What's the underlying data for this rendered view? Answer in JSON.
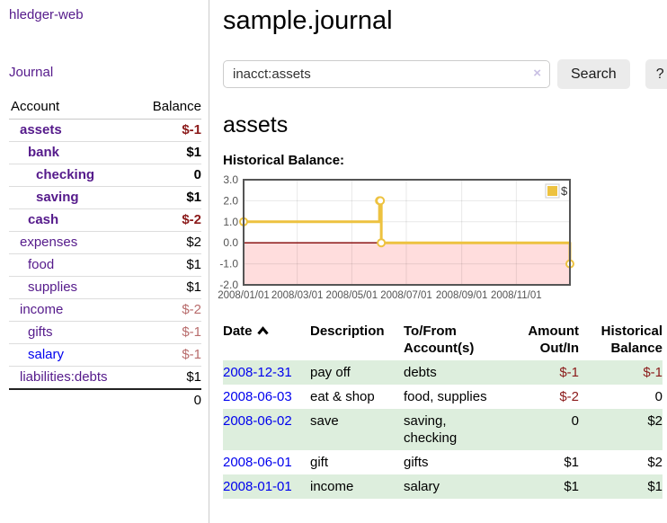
{
  "colors": {
    "purple": "#551a8b",
    "link-blue": "#0000ee",
    "neg-strong": "#8b1a1a",
    "neg-soft": "#b86c6c",
    "stripe-green": "#ddeedd"
  },
  "app": {
    "brand": "hledger-web"
  },
  "nav": {
    "journal": "Journal"
  },
  "sidebar": {
    "header": {
      "account": "Account",
      "balance": "Balance"
    },
    "accounts": [
      {
        "name": "assets",
        "balance": "$-1",
        "indent": 1,
        "bold": true,
        "neg": "strong"
      },
      {
        "name": "bank",
        "balance": "$1",
        "indent": 2,
        "bold": true
      },
      {
        "name": "checking",
        "balance": "0",
        "indent": 3,
        "bold": true
      },
      {
        "name": "saving",
        "balance": "$1",
        "indent": 3,
        "bold": true
      },
      {
        "name": "cash",
        "balance": "$-2",
        "indent": 2,
        "bold": true,
        "neg": "strong"
      },
      {
        "name": "expenses",
        "balance": "$2",
        "indent": 1
      },
      {
        "name": "food",
        "balance": "$1",
        "indent": 2
      },
      {
        "name": "supplies",
        "balance": "$1",
        "indent": 2
      },
      {
        "name": "income",
        "balance": "$-2",
        "indent": 1,
        "neg": "soft"
      },
      {
        "name": "gifts",
        "balance": "$-1",
        "indent": 2,
        "neg": "soft"
      },
      {
        "name": "salary",
        "balance": "$-1",
        "indent": 2,
        "neg": "soft",
        "link_color": "blue"
      },
      {
        "name": "liabilities:debts",
        "balance": "$1",
        "indent": 1
      }
    ],
    "total": "0"
  },
  "page": {
    "title": "sample.journal"
  },
  "search": {
    "value": "inacct:assets",
    "clear": "×",
    "search_button": "Search",
    "help_button": "?"
  },
  "account_view": {
    "heading": "assets",
    "chart_title": "Historical Balance:"
  },
  "chart_data": {
    "type": "line",
    "step": true,
    "series": [
      {
        "name": "$",
        "color": "#edc240",
        "points": [
          [
            "2008-01-01",
            1
          ],
          [
            "2008-06-01",
            2
          ],
          [
            "2008-06-02",
            2
          ],
          [
            "2008-06-03",
            0
          ],
          [
            "2008-12-31",
            -1
          ]
        ]
      }
    ],
    "x_range": [
      "2008-01-01",
      "2008-12-31"
    ],
    "x_ticks": [
      "2008/01/01",
      "2008/03/01",
      "2008/05/01",
      "2008/07/01",
      "2008/09/01",
      "2008/11/01"
    ],
    "y_range": [
      -2,
      3
    ],
    "y_ticks": [
      "3.0",
      "2.0",
      "1.0",
      "0.0",
      "-1.0",
      "-2.0"
    ],
    "grid": true,
    "negative_region_fill": "#ffdddd",
    "zero_line_color": "#800000",
    "axis_text_color": "#545454",
    "border_color": "#555555",
    "legend": {
      "label": "$",
      "position": "top-right"
    }
  },
  "register": {
    "columns": [
      {
        "lines": [
          "Date"
        ],
        "sort": "asc",
        "align": "left"
      },
      {
        "lines": [
          "Description"
        ],
        "align": "left"
      },
      {
        "lines": [
          "To/From",
          "Account(s)"
        ],
        "align": "left"
      },
      {
        "lines": [
          "Amount",
          "Out/In"
        ],
        "align": "right"
      },
      {
        "lines": [
          "Historical",
          "Balance"
        ],
        "align": "right"
      }
    ],
    "rows": [
      {
        "date": "2008-12-31",
        "description": "pay off",
        "accounts": "debts",
        "amount": "$-1",
        "amount_neg": true,
        "balance": "$-1",
        "balance_neg": true
      },
      {
        "date": "2008-06-03",
        "description": "eat & shop",
        "accounts": "food, supplies",
        "amount": "$-2",
        "amount_neg": true,
        "balance": "0"
      },
      {
        "date": "2008-06-02",
        "description": "save",
        "accounts": "saving, checking",
        "amount": "0",
        "balance": "$2"
      },
      {
        "date": "2008-06-01",
        "description": "gift",
        "accounts": "gifts",
        "amount": "$1",
        "balance": "$2"
      },
      {
        "date": "2008-01-01",
        "description": "income",
        "accounts": "salary",
        "amount": "$1",
        "balance": "$1"
      }
    ]
  }
}
